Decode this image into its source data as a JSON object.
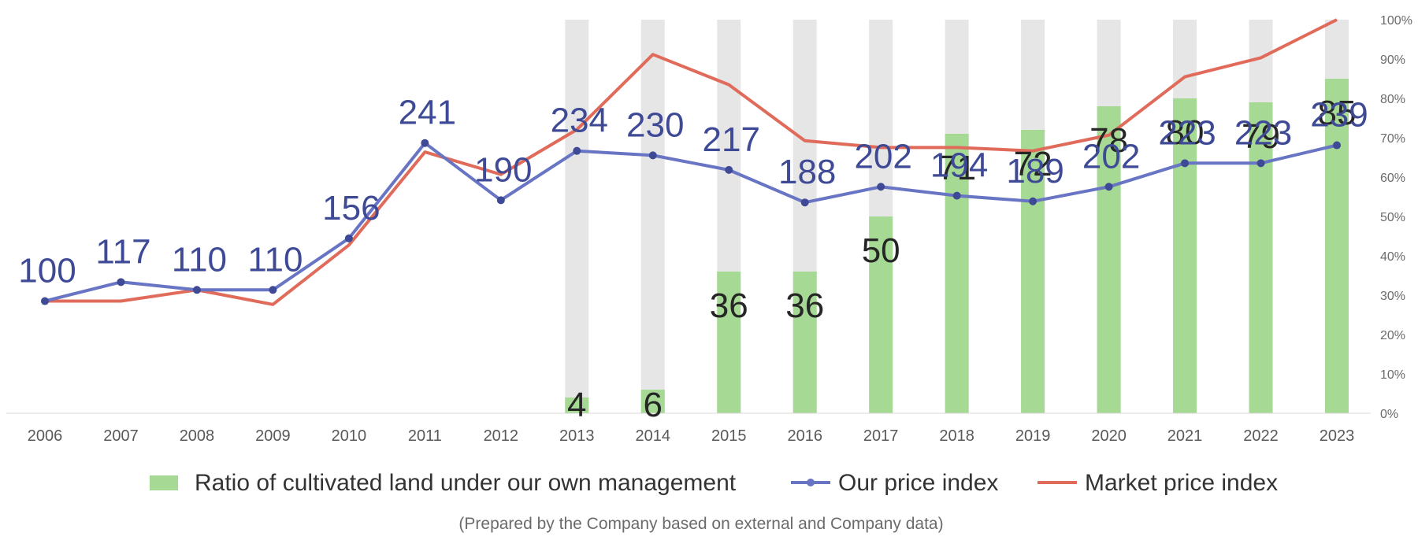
{
  "chart_data": {
    "type": "bar+line",
    "categories": [
      "2006",
      "2007",
      "2008",
      "2009",
      "2010",
      "2011",
      "2012",
      "2013",
      "2014",
      "2015",
      "2016",
      "2017",
      "2018",
      "2019",
      "2020",
      "2021",
      "2022",
      "2023"
    ],
    "bar_series": {
      "name": "Ratio of cultivated land under our own management",
      "values": [
        null,
        null,
        null,
        null,
        null,
        null,
        null,
        4,
        6,
        36,
        36,
        50,
        71,
        72,
        78,
        80,
        79,
        85
      ],
      "color": "#a6d993",
      "background_color": "#e6e6e6",
      "axis": "right",
      "ylim": [
        0,
        100
      ]
    },
    "line_series": [
      {
        "name": "Our price index",
        "values": [
          100,
          117,
          110,
          110,
          156,
          241,
          190,
          234,
          230,
          217,
          188,
          202,
          194,
          189,
          202,
          223,
          223,
          239
        ],
        "color": "#6874c4",
        "label_color": "#3f4a96",
        "markers": true,
        "labeled": true
      },
      {
        "name": "Market price index",
        "values": [
          100,
          100,
          110,
          97,
          150,
          233,
          213,
          253,
          320,
          293,
          243,
          237,
          237,
          234,
          248,
          300,
          317,
          351
        ],
        "color": "#e06b5a",
        "markers": false,
        "labeled": false
      }
    ],
    "left_ylim": [
      0,
      351
    ],
    "right_axis_ticks": [
      "0%",
      "10%",
      "20%",
      "30%",
      "40%",
      "50%",
      "60%",
      "70%",
      "80%",
      "90%",
      "100%"
    ],
    "grid": false,
    "legend_position": "bottom"
  },
  "legend": {
    "items": [
      {
        "label": "Ratio of cultivated land under our own management",
        "kind": "bar",
        "color": "#a6d993"
      },
      {
        "label": "Our price index",
        "kind": "line-marker",
        "color": "#6874c4"
      },
      {
        "label": "Market price index",
        "kind": "line",
        "color": "#e06b5a"
      }
    ]
  },
  "note": "(Prepared by the Company based on external and Company data)"
}
